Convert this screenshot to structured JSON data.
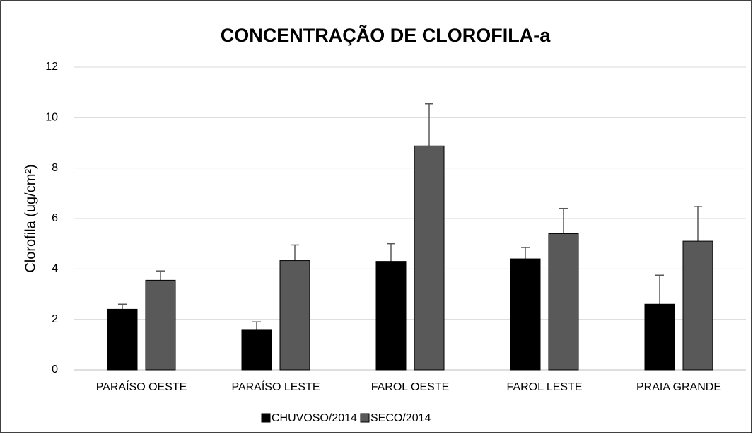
{
  "chart_data": {
    "type": "bar",
    "title": "CONCENTRAÇÃO DE CLOROFILA-a",
    "ylabel": "Clorofila (ug/cm²)",
    "categories": [
      "PARAÍSO OESTE",
      "PARAÍSO LESTE",
      "FAROL OESTE",
      "FAROL LESTE",
      "PRAIA GRANDE"
    ],
    "series": [
      {
        "name": "CHUVOSO/2014",
        "color": "#000000",
        "values": [
          2.4,
          1.6,
          4.3,
          4.4,
          2.6
        ],
        "errors": [
          0.2,
          0.3,
          0.7,
          0.45,
          1.15
        ]
      },
      {
        "name": "SECO/2014",
        "color": "#595959",
        "values": [
          3.55,
          4.33,
          8.88,
          5.4,
          5.1
        ],
        "errors": [
          0.37,
          0.62,
          1.67,
          1.0,
          1.38
        ]
      }
    ],
    "ylim": [
      0,
      12
    ],
    "yticks": [
      0,
      2,
      4,
      6,
      8,
      10,
      12
    ],
    "grid": true,
    "legend": "bottom"
  }
}
